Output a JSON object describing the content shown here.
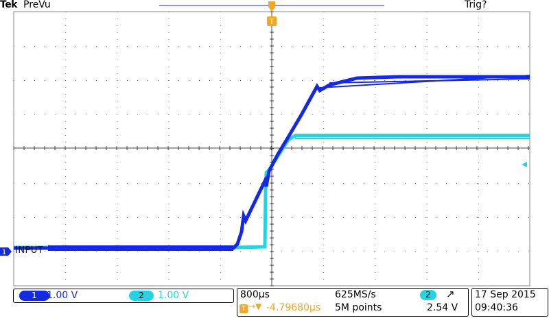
{
  "header": {
    "brand": "Tek",
    "mode": "PreVu",
    "trigger_status": "Trig?"
  },
  "trigger_marker": {
    "label": "T"
  },
  "channels": {
    "ch1": {
      "number": "1",
      "scale": "1.00 V",
      "label": "INPUT",
      "color": "#1428e6"
    },
    "ch2": {
      "number": "2",
      "scale": "1.00 V",
      "color": "#27d3e0"
    }
  },
  "horizontal": {
    "time_per_div": "800µs",
    "sample_rate": "625MS/s",
    "record_length": "5M points",
    "trigger_position": "-4.79680µs"
  },
  "trigger": {
    "source": "2",
    "slope_icon": "rising-edge-icon",
    "level": "2.54 V",
    "marker_color": "#f5a623"
  },
  "datetime": {
    "date": "17 Sep  2015",
    "time": "09:40:36"
  },
  "colors": {
    "grid": "#7a7a7a",
    "ch1": "#1428e6",
    "ch2": "#27d3e0",
    "trigger": "#f5a623"
  }
}
